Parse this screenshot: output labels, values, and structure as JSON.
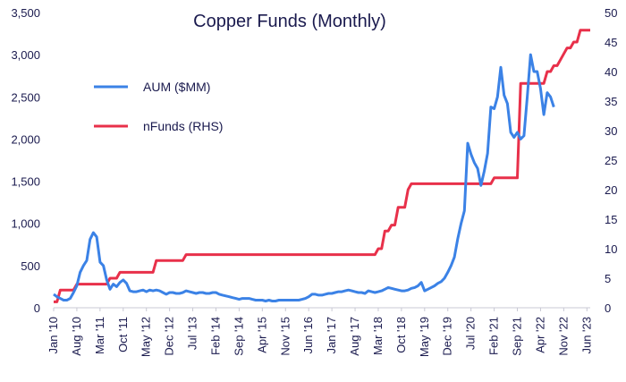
{
  "chart_data": {
    "type": "line",
    "title": "Copper Funds (Monthly)",
    "x_tick_labels": [
      "Jan '10",
      "Aug '10",
      "Mar '11",
      "Oct '11",
      "May '12",
      "Dec '12",
      "Jul '13",
      "Feb '14",
      "Sep '14",
      "Apr '15",
      "Nov '15",
      "Jun '16",
      "Jan '17",
      "Aug '17",
      "Mar '18",
      "Oct '18",
      "May '19",
      "Dec '19",
      "Jul '20",
      "Feb '21",
      "Sep '21",
      "Apr '22",
      "Nov '22",
      "Jun '23"
    ],
    "y_left": {
      "ylim": [
        0,
        3500
      ],
      "ticks": [
        "0",
        "500",
        "1,000",
        "1,500",
        "2,000",
        "2,500",
        "3,000",
        "3,500"
      ]
    },
    "y_right": {
      "ylim": [
        0,
        50
      ],
      "ticks": [
        "0",
        "5",
        "10",
        "15",
        "20",
        "25",
        "30",
        "35",
        "40",
        "45",
        "50"
      ]
    },
    "legend_placement": "top-left",
    "grid": false,
    "series": [
      {
        "name": "AUM ($MM)",
        "axis": "left",
        "color": "#3b82e6",
        "values": [
          160,
          130,
          110,
          90,
          90,
          110,
          180,
          260,
          420,
          500,
          560,
          810,
          890,
          840,
          540,
          500,
          330,
          220,
          280,
          250,
          300,
          330,
          290,
          200,
          190,
          190,
          200,
          210,
          190,
          210,
          200,
          210,
          200,
          180,
          160,
          180,
          180,
          170,
          170,
          180,
          200,
          190,
          180,
          170,
          180,
          180,
          170,
          170,
          180,
          180,
          160,
          150,
          140,
          130,
          120,
          110,
          100,
          110,
          110,
          110,
          100,
          90,
          90,
          90,
          80,
          90,
          80,
          80,
          90,
          90,
          90,
          90,
          90,
          90,
          90,
          100,
          110,
          130,
          160,
          160,
          150,
          150,
          160,
          170,
          170,
          180,
          190,
          190,
          200,
          210,
          200,
          190,
          180,
          180,
          170,
          200,
          190,
          180,
          190,
          200,
          220,
          240,
          230,
          220,
          210,
          200,
          200,
          210,
          230,
          240,
          260,
          300,
          200,
          220,
          240,
          260,
          290,
          310,
          350,
          420,
          500,
          600,
          820,
          1000,
          1150,
          1950,
          1820,
          1720,
          1650,
          1450,
          1620,
          1830,
          2380,
          2360,
          2500,
          2850,
          2520,
          2420,
          2080,
          2020,
          2080,
          2000,
          2040,
          2500,
          3000,
          2800,
          2800,
          2600,
          2290,
          2550,
          2500,
          2380
        ],
        "series_start_month": "Jan '10"
      },
      {
        "name": "nFunds (RHS)",
        "axis": "right",
        "color": "#e8304a",
        "values": [
          1,
          1,
          3,
          3,
          3,
          3,
          3,
          4,
          4,
          4,
          4,
          4,
          4,
          4,
          4,
          4,
          4,
          5,
          5,
          5,
          6,
          6,
          6,
          6,
          6,
          6,
          6,
          6,
          6,
          6,
          6,
          8,
          8,
          8,
          8,
          8,
          8,
          8,
          8,
          8,
          9,
          9,
          9,
          9,
          9,
          9,
          9,
          9,
          9,
          9,
          9,
          9,
          9,
          9,
          9,
          9,
          9,
          9,
          9,
          9,
          9,
          9,
          9,
          9,
          9,
          9,
          9,
          9,
          9,
          9,
          9,
          9,
          9,
          9,
          9,
          9,
          9,
          9,
          9,
          9,
          9,
          9,
          9,
          9,
          9,
          9,
          9,
          9,
          9,
          9,
          9,
          9,
          9,
          9,
          9,
          9,
          9,
          9,
          10,
          10,
          13,
          13,
          14,
          14,
          17,
          17,
          17,
          20,
          21,
          21,
          21,
          21,
          21,
          21,
          21,
          21,
          21,
          21,
          21,
          21,
          21,
          21,
          21,
          21,
          21,
          21,
          21,
          21,
          21,
          21,
          21,
          21,
          21,
          22,
          22,
          22,
          22,
          22,
          22,
          22,
          22,
          38,
          38,
          38,
          38,
          38,
          38,
          38,
          38,
          40,
          40,
          41,
          41,
          42,
          43,
          44,
          44,
          45,
          45,
          47,
          47,
          47,
          47
        ]
      }
    ]
  }
}
